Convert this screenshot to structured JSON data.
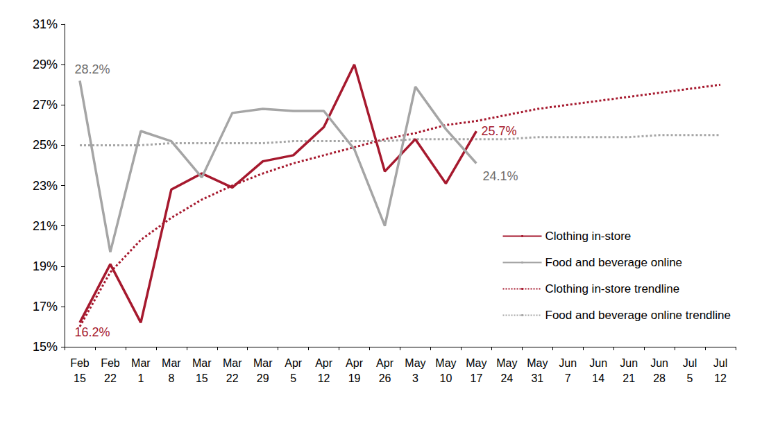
{
  "chart_data": {
    "type": "line",
    "categories": [
      "Feb 15",
      "Feb 22",
      "Mar 1",
      "Mar 8",
      "Mar 15",
      "Mar 22",
      "Mar 29",
      "Apr 5",
      "Apr 12",
      "Apr 19",
      "Apr 26",
      "May 3",
      "May 10",
      "May 17",
      "May 24",
      "May 31",
      "Jun 7",
      "Jun 14",
      "Jun 21",
      "Jun 28",
      "Jul 5",
      "Jul 12"
    ],
    "series": [
      {
        "name": "Clothing in-store",
        "color": "#a6192e",
        "line_style": "solid",
        "values": [
          16.2,
          19.1,
          16.2,
          22.8,
          23.6,
          22.9,
          24.2,
          24.5,
          25.9,
          29.0,
          23.7,
          25.3,
          23.1,
          25.7,
          null,
          null,
          null,
          null,
          null,
          null,
          null,
          null
        ]
      },
      {
        "name": "Food and beverage online",
        "color": "#a5a5a5",
        "line_style": "solid",
        "values": [
          28.2,
          19.7,
          25.7,
          25.2,
          23.4,
          26.6,
          26.8,
          26.7,
          26.7,
          24.8,
          21.0,
          27.9,
          25.8,
          24.1,
          null,
          null,
          null,
          null,
          null,
          null,
          null,
          null
        ]
      },
      {
        "name": "Clothing in-store trendline",
        "color": "#a6192e",
        "line_style": "dotted",
        "values": [
          16.0,
          18.7,
          20.3,
          21.4,
          22.3,
          23.0,
          23.6,
          24.1,
          24.5,
          24.9,
          25.3,
          25.6,
          26.0,
          26.2,
          26.5,
          26.8,
          27.0,
          27.2,
          27.4,
          27.6,
          27.8,
          28.0
        ]
      },
      {
        "name": "Food and beverage online trendline",
        "color": "#a5a5a5",
        "line_style": "dotted",
        "values": [
          25.0,
          25.0,
          25.0,
          25.1,
          25.1,
          25.1,
          25.1,
          25.2,
          25.2,
          25.2,
          25.2,
          25.3,
          25.3,
          25.3,
          25.3,
          25.4,
          25.4,
          25.4,
          25.4,
          25.5,
          25.5,
          25.5
        ]
      }
    ],
    "annotations": [
      {
        "text": "28.2%",
        "series": "Food and beverage online",
        "category": "Feb 15"
      },
      {
        "text": "16.2%",
        "series": "Clothing in-store",
        "category": "Feb 15"
      },
      {
        "text": "25.7%",
        "series": "Clothing in-store",
        "category": "May 17"
      },
      {
        "text": "24.1%",
        "series": "Food and beverage online",
        "category": "May 17"
      }
    ],
    "ylim": [
      15,
      31
    ],
    "yticks": [
      {
        "value": 15,
        "label": "15%"
      },
      {
        "value": 17,
        "label": "17%"
      },
      {
        "value": 19,
        "label": "19%"
      },
      {
        "value": 21,
        "label": "21%"
      },
      {
        "value": 23,
        "label": "23%"
      },
      {
        "value": 25,
        "label": "25%"
      },
      {
        "value": 27,
        "label": "27%"
      },
      {
        "value": 29,
        "label": "29%"
      },
      {
        "value": 31,
        "label": "31%"
      }
    ],
    "grid": false,
    "legend": "right"
  }
}
